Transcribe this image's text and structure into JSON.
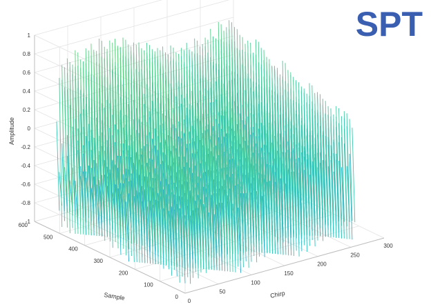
{
  "watermark": {
    "text": "SPT",
    "color": "#3b5fb0"
  },
  "chart_data": {
    "type": "surface-3d",
    "title": "",
    "xlabel": "Chirp",
    "ylabel": "Sample",
    "zlabel": "Amplitude",
    "xlim": [
      0,
      300
    ],
    "ylim": [
      0,
      600
    ],
    "zlim": [
      -1,
      1
    ],
    "xticks": [
      "0",
      "50",
      "100",
      "150",
      "200",
      "250",
      "300"
    ],
    "yticks": [
      "0",
      "100",
      "200",
      "300",
      "400",
      "500",
      "600"
    ],
    "zticks": [
      "-1",
      "-0.8",
      "-0.6",
      "-0.4",
      "-0.2",
      "0",
      "0.2",
      "0.4",
      "0.6",
      "0.8",
      "1"
    ],
    "grid": true,
    "colormap": [
      "#3b2cd0",
      "#2f7fe0",
      "#2ec4c4",
      "#5fd07a",
      "#d9e040"
    ],
    "data_extent": {
      "chirp": [
        0,
        256
      ],
      "sample": [
        0,
        512
      ],
      "amplitude": [
        -1,
        1
      ]
    },
    "description_of_values": "Oscillating amplitude between -1 and 1 along samples for each chirp"
  }
}
